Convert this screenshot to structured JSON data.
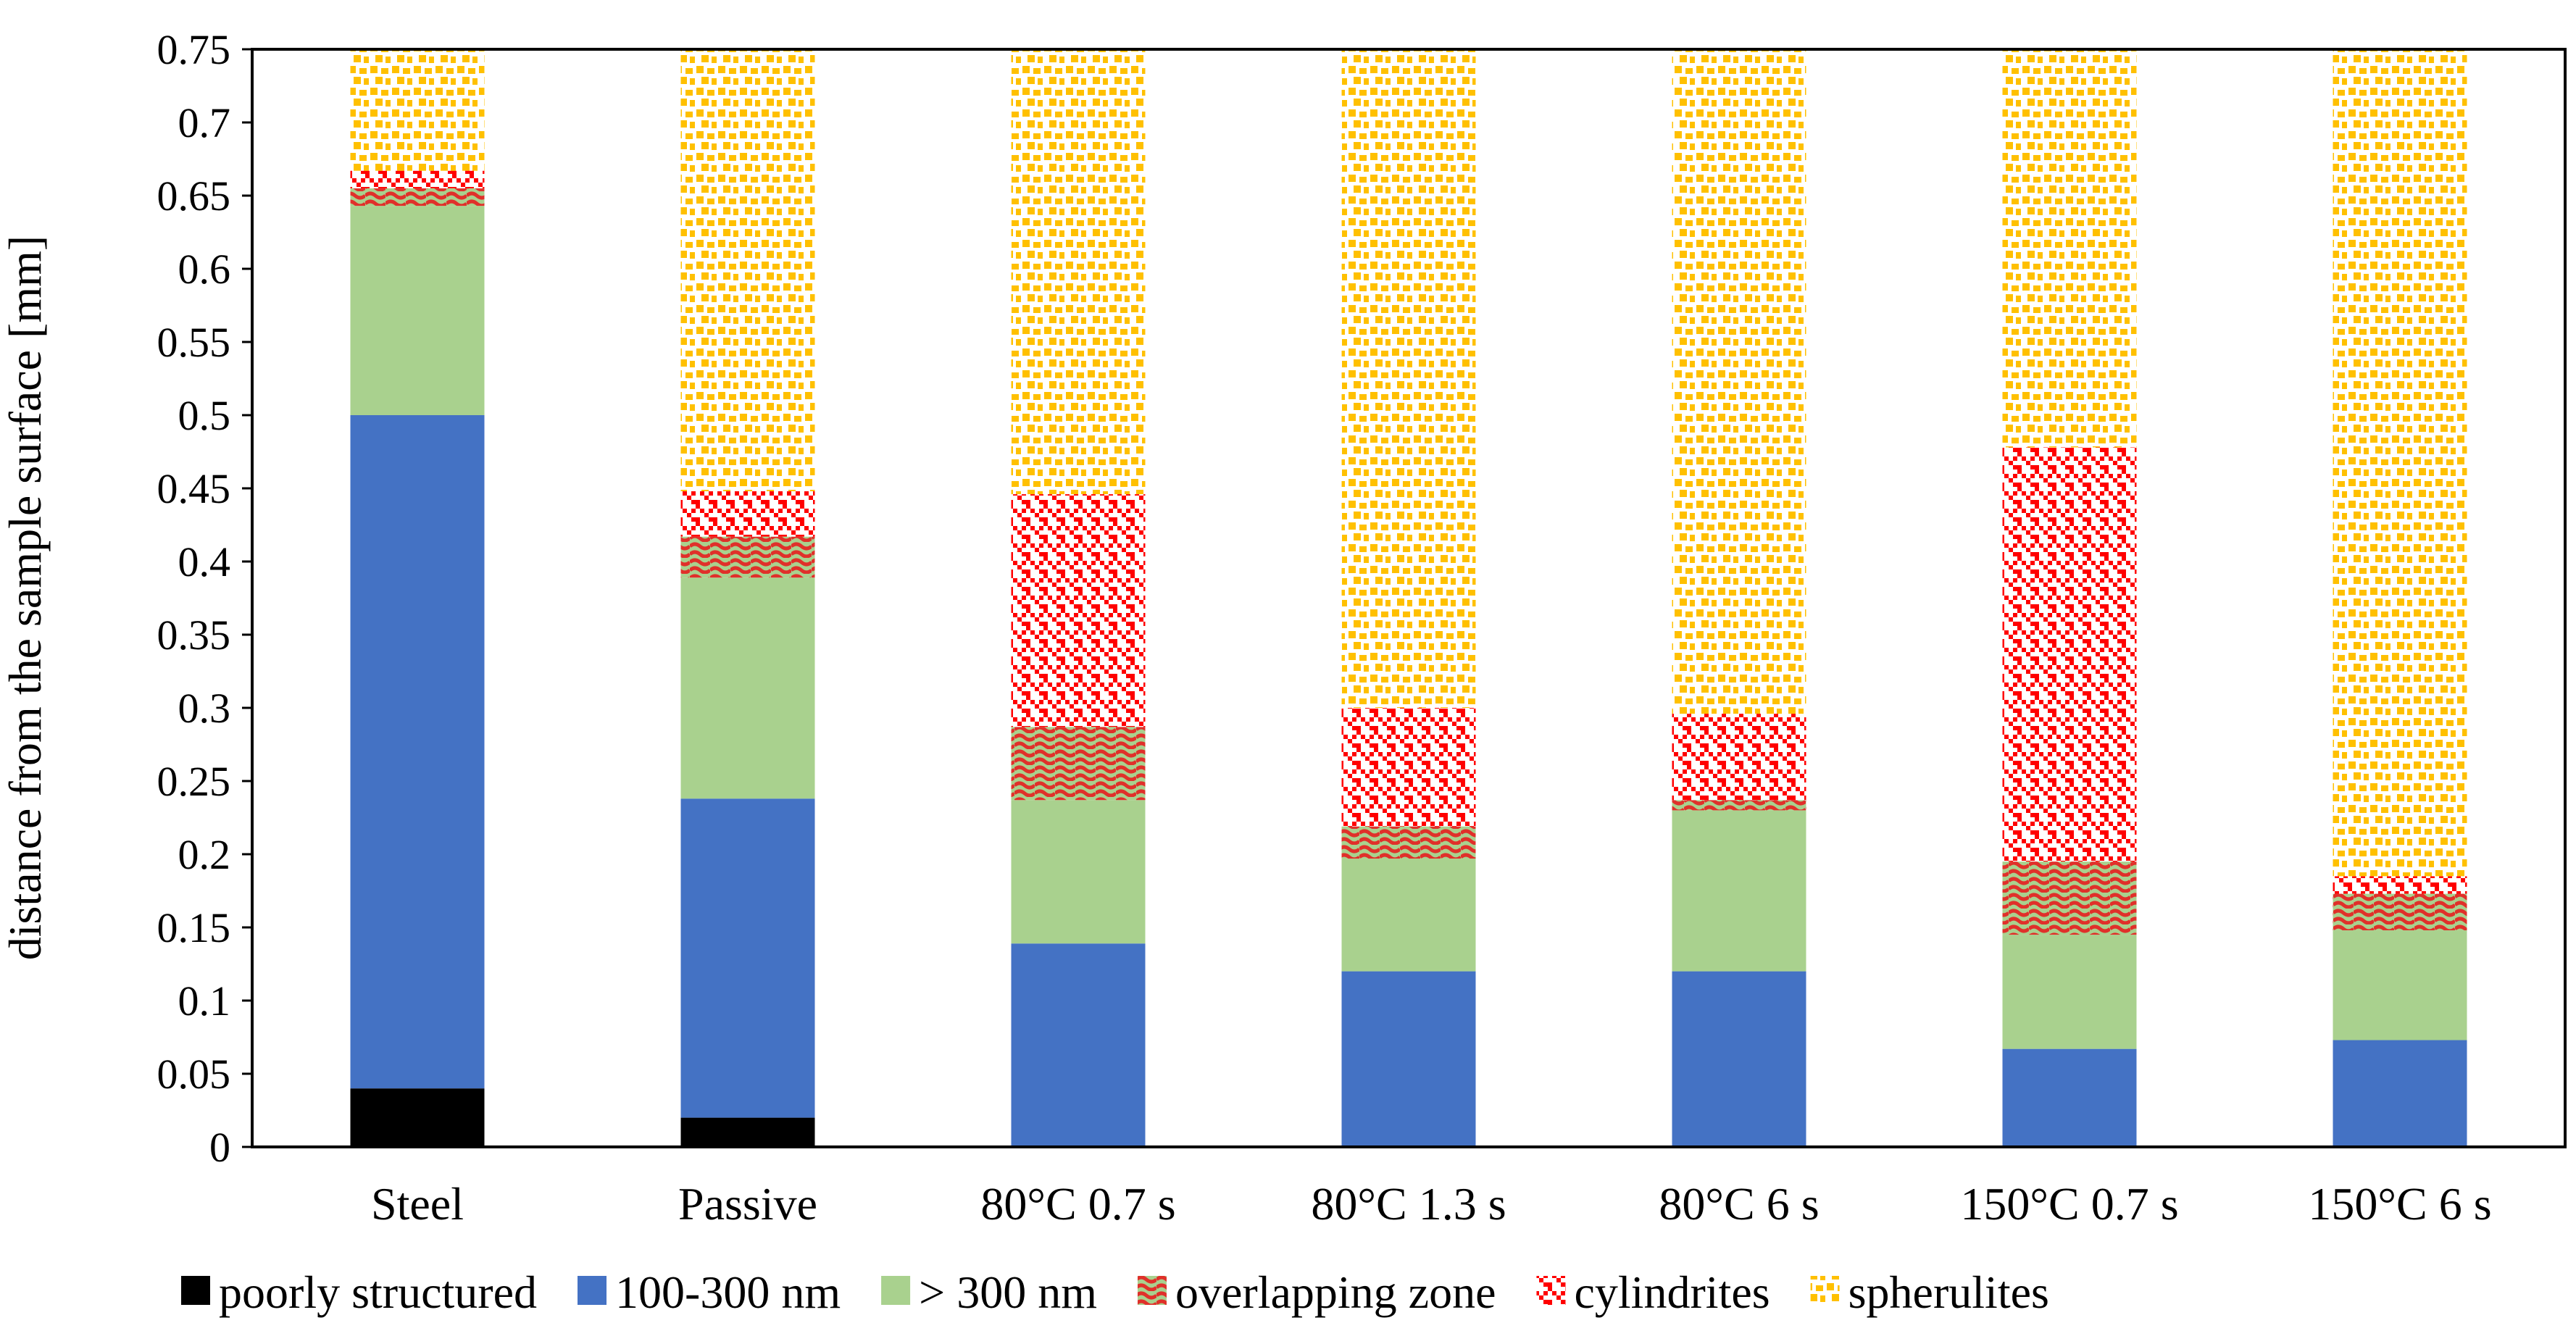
{
  "chart_data": {
    "type": "bar",
    "stacked": true,
    "title": "",
    "xlabel": "",
    "ylabel": "distance from the sample surface [mm]",
    "ylim": [
      0,
      0.75
    ],
    "ytick_step": 0.05,
    "yticks": [
      "0",
      "0.05",
      "0.1",
      "0.15",
      "0.2",
      "0.25",
      "0.3",
      "0.35",
      "0.4",
      "0.45",
      "0.5",
      "0.55",
      "0.6",
      "0.65",
      "0.7",
      "0.75"
    ],
    "categories": [
      "Steel",
      "Passive",
      "80°C 0.7 s",
      "80°C 1.3 s",
      "80°C 6 s",
      "150°C 0.7 s",
      "150°C 6 s"
    ],
    "legend_position": "bottom",
    "series": [
      {
        "name": "poorly structured",
        "key": "poorly",
        "color": "#000000",
        "values": [
          0.04,
          0.02,
          0,
          0,
          0,
          0,
          0
        ]
      },
      {
        "name": "100-300 nm",
        "key": "nm100",
        "color": "#4472C4",
        "values": [
          0.46,
          0.218,
          0.139,
          0.12,
          0.12,
          0.067,
          0.073
        ]
      },
      {
        "name": "> 300 nm",
        "key": "nm300",
        "color": "#A9D18E",
        "values": [
          0.143,
          0.151,
          0.098,
          0.077,
          0.11,
          0.078,
          0.075
        ]
      },
      {
        "name": "overlapping zone",
        "key": "overlap",
        "color": "#E03030",
        "values": [
          0.012,
          0.028,
          0.05,
          0.022,
          0.007,
          0.05,
          0.025
        ]
      },
      {
        "name": "cylindrites",
        "key": "cyl",
        "color": "#FF0000",
        "values": [
          0.012,
          0.031,
          0.159,
          0.081,
          0.059,
          0.283,
          0.012
        ]
      },
      {
        "name": "spherulites",
        "key": "sph",
        "color": "#FFC000",
        "values": [
          0.083,
          0.302,
          0.304,
          0.45,
          0.454,
          0.272,
          0.565
        ]
      }
    ]
  }
}
